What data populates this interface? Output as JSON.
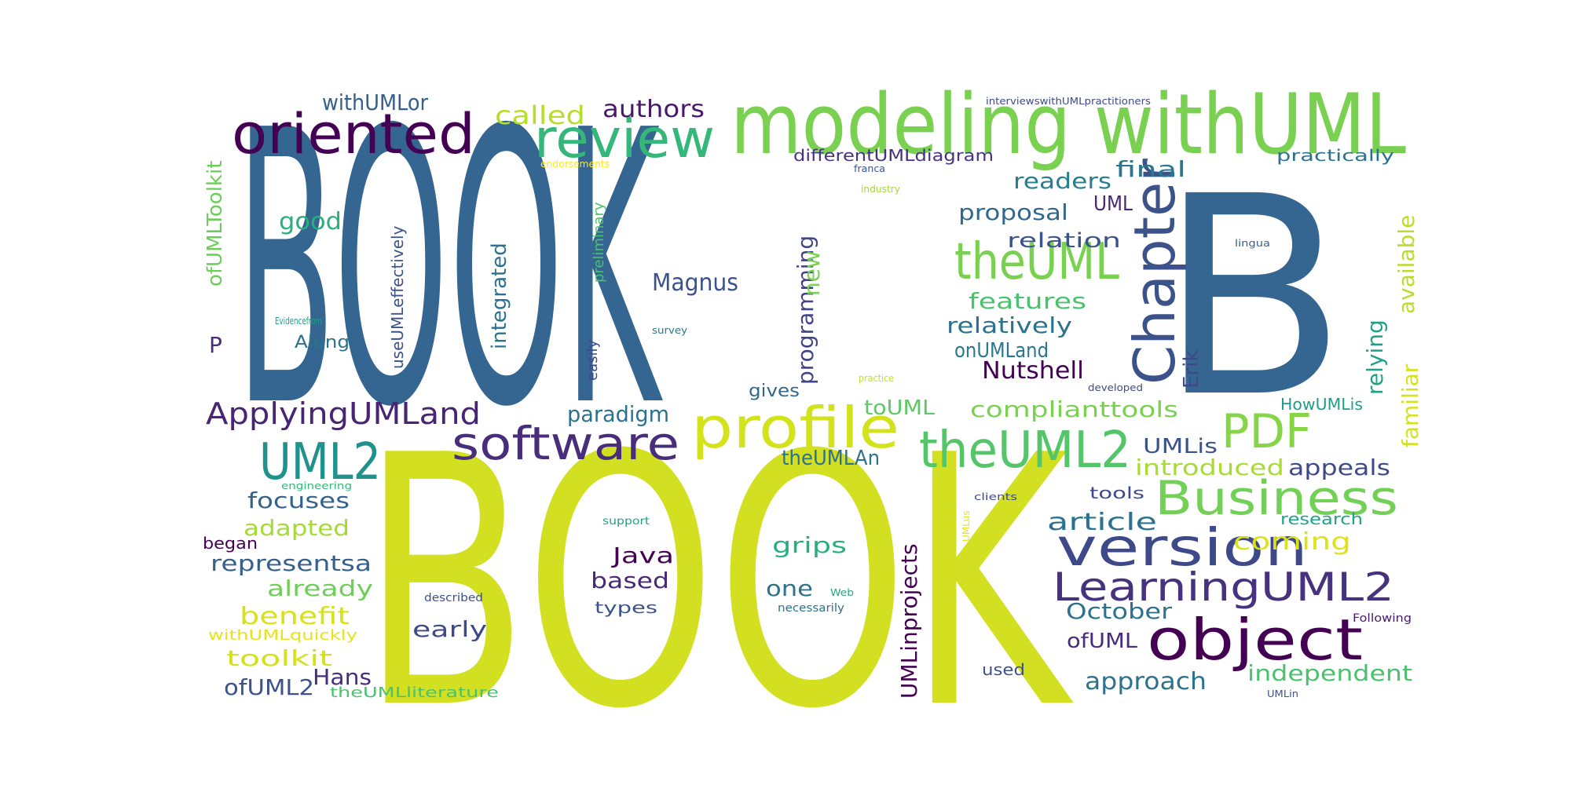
{
  "colors": {
    "background": "#ffffff",
    "palette": [
      "#440154",
      "#46327e",
      "#365c8d",
      "#277f8e",
      "#1fa187",
      "#4ac16d",
      "#a0da39",
      "#d1e11d",
      "#fde725"
    ]
  },
  "words": [
    {
      "text": "BOOK",
      "color": "#356591"
    },
    {
      "text": "BOOK",
      "color": "#d3e021"
    },
    {
      "text": "B",
      "color": "#356591"
    },
    {
      "text": "modeling withUML",
      "color": "#7ad151"
    },
    {
      "text": "review",
      "color": "#35b779"
    },
    {
      "text": "oriented",
      "color": "#440154"
    },
    {
      "text": "Chapter",
      "color": "#3b528b"
    },
    {
      "text": "theUML",
      "color": "#7ad151"
    },
    {
      "text": "profile",
      "color": "#d2e21b"
    },
    {
      "text": "software",
      "color": "#472d7b"
    },
    {
      "text": "theUML2",
      "color": "#54c568"
    },
    {
      "text": "UML2",
      "color": "#21918c"
    },
    {
      "text": "PDF",
      "color": "#86d549"
    },
    {
      "text": "Business",
      "color": "#73d056"
    },
    {
      "text": "version",
      "color": "#3e4989"
    },
    {
      "text": "LearningUML2",
      "color": "#46327e"
    },
    {
      "text": "object",
      "color": "#440154"
    },
    {
      "text": "ApplyingUMLand",
      "color": "#482475"
    },
    {
      "text": "withUMLor",
      "color": "#355f8d"
    },
    {
      "text": "called",
      "color": "#b5de2b"
    },
    {
      "text": "authors",
      "color": "#48186a"
    },
    {
      "text": "ofUMLToolkit",
      "color": "#6ccd5a"
    },
    {
      "text": "good",
      "color": "#29af7f"
    },
    {
      "text": "P",
      "color": "#472c7a"
    },
    {
      "text": "Along",
      "color": "#2c728e"
    },
    {
      "text": "useUMLeffectively",
      "color": "#3b528b"
    },
    {
      "text": "Evidencefrom",
      "color": "#1fa187"
    },
    {
      "text": "easily",
      "color": "#3e4989"
    },
    {
      "text": "preliminary",
      "color": "#4ac16d"
    },
    {
      "text": "integrated",
      "color": "#2c728e"
    },
    {
      "text": "Magnus",
      "color": "#3b528b"
    },
    {
      "text": "survey",
      "color": "#2a788e"
    },
    {
      "text": "programming",
      "color": "#414487"
    },
    {
      "text": "new",
      "color": "#7ad151"
    },
    {
      "text": "differentUMLdiagram",
      "color": "#46337f"
    },
    {
      "text": "endorsements",
      "color": "#fde725"
    },
    {
      "text": "franca",
      "color": "#3b528b"
    },
    {
      "text": "industry",
      "color": "#a5db36"
    },
    {
      "text": "interviewswithUMLpractitioners",
      "color": "#3e4989"
    },
    {
      "text": "practically",
      "color": "#2c728e"
    },
    {
      "text": "final",
      "color": "#2a788e"
    },
    {
      "text": "readers",
      "color": "#287d8e"
    },
    {
      "text": "UML",
      "color": "#482878"
    },
    {
      "text": "proposal",
      "color": "#31688e"
    },
    {
      "text": "relation",
      "color": "#3b528b"
    },
    {
      "text": "features",
      "color": "#4ac16d"
    },
    {
      "text": "relatively",
      "color": "#2c728e"
    },
    {
      "text": "onUMLand",
      "color": "#2a788e"
    },
    {
      "text": "Nutshell",
      "color": "#440154"
    },
    {
      "text": "Erik",
      "color": "#3e4989"
    },
    {
      "text": "relying",
      "color": "#1fa187"
    },
    {
      "text": "familiar",
      "color": "#d2e21b"
    },
    {
      "text": "available",
      "color": "#b8de29"
    },
    {
      "text": "lingua",
      "color": "#355f8d"
    },
    {
      "text": "developed",
      "color": "#3e4989"
    },
    {
      "text": "practice",
      "color": "#c2df23"
    },
    {
      "text": "gives",
      "color": "#31688e"
    },
    {
      "text": "toUML",
      "color": "#5ec962"
    },
    {
      "text": "paradigm",
      "color": "#2c728e"
    },
    {
      "text": "complianttools",
      "color": "#7ad151"
    },
    {
      "text": "HowUMLis",
      "color": "#1f9e89"
    },
    {
      "text": "theUMLAn",
      "color": "#2c728e"
    },
    {
      "text": "UMLis",
      "color": "#3b528b"
    },
    {
      "text": "introduced",
      "color": "#a8db34"
    },
    {
      "text": "appeals",
      "color": "#3e4989"
    },
    {
      "text": "focuses",
      "color": "#33638d"
    },
    {
      "text": "engineering",
      "color": "#35b779"
    },
    {
      "text": "adapted",
      "color": "#a5db36"
    },
    {
      "text": "began",
      "color": "#440154"
    },
    {
      "text": "representsa",
      "color": "#355f8d"
    },
    {
      "text": "already",
      "color": "#6ece58"
    },
    {
      "text": "benefit",
      "color": "#d8e219"
    },
    {
      "text": "withUMLquickly",
      "color": "#e5e419"
    },
    {
      "text": "toolkit",
      "color": "#d5e21a"
    },
    {
      "text": "ofUML2",
      "color": "#3b528b"
    },
    {
      "text": "Hans",
      "color": "#472d7b"
    },
    {
      "text": "theUMLliterature",
      "color": "#4ac16d"
    },
    {
      "text": "support",
      "color": "#1fa187"
    },
    {
      "text": "described",
      "color": "#3b528b"
    },
    {
      "text": "early",
      "color": "#3e4989"
    },
    {
      "text": "Java",
      "color": "#440154"
    },
    {
      "text": "based",
      "color": "#482878"
    },
    {
      "text": "types",
      "color": "#3b528b"
    },
    {
      "text": "grips",
      "color": "#29af7f"
    },
    {
      "text": "one",
      "color": "#2c728e"
    },
    {
      "text": "Web",
      "color": "#22a884"
    },
    {
      "text": "necessarily",
      "color": "#2c728e"
    },
    {
      "text": "UMLinprojects",
      "color": "#440154"
    },
    {
      "text": "clients",
      "color": "#3e4989"
    },
    {
      "text": "UMLus",
      "color": "#e5e419"
    },
    {
      "text": "tools",
      "color": "#3e4989"
    },
    {
      "text": "article",
      "color": "#2c728e"
    },
    {
      "text": "research",
      "color": "#20a386"
    },
    {
      "text": "coming",
      "color": "#dde318"
    },
    {
      "text": "October",
      "color": "#2c728e"
    },
    {
      "text": "ofUML",
      "color": "#472d7b"
    },
    {
      "text": "Following",
      "color": "#48186a"
    },
    {
      "text": "approach",
      "color": "#2c728e"
    },
    {
      "text": "independent",
      "color": "#4ac16d"
    },
    {
      "text": "used",
      "color": "#3b528b"
    },
    {
      "text": "UMLin",
      "color": "#3b528b"
    }
  ]
}
